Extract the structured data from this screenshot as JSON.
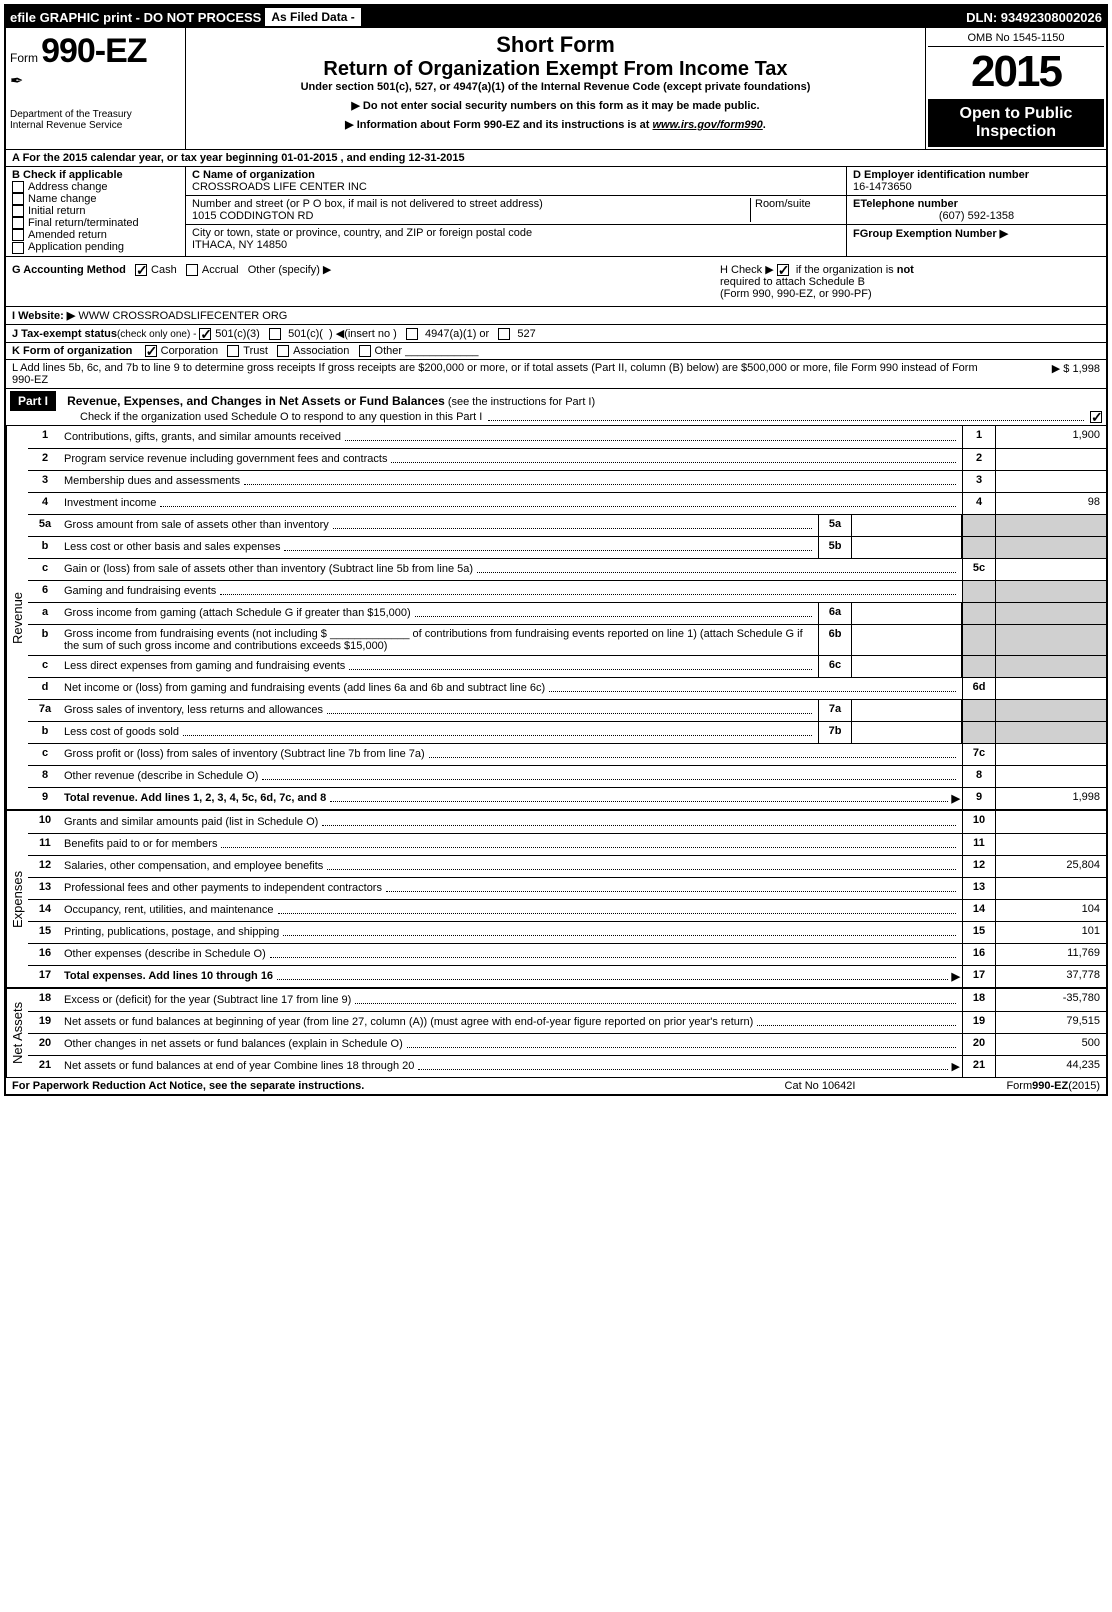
{
  "topbar": {
    "efile": "efile GRAPHIC print - DO NOT PROCESS",
    "asfiled": "As Filed Data -",
    "dln": "DLN: 93492308002026"
  },
  "header": {
    "form_prefix": "Form",
    "form_num": "990-EZ",
    "dept1": "Department of the Treasury",
    "dept2": "Internal Revenue Service",
    "short": "Short Form",
    "return": "Return of Organization Exempt From Income Tax",
    "under": "Under section 501(c), 527, or 4947(a)(1) of the Internal Revenue Code (except private foundations)",
    "note1": "▶ Do not enter social security numbers on this form as it may be made public.",
    "note2_pre": "▶ Information about Form 990-EZ and its instructions is at ",
    "note2_link": "www.irs.gov/form990",
    "omb": "OMB No 1545-1150",
    "year": "2015",
    "open1": "Open to Public",
    "open2": "Inspection"
  },
  "sectionA": "A  For the 2015 calendar year, or tax year beginning 01-01-2015              , and ending 12-31-2015",
  "boxB": {
    "title": "B  Check if applicable",
    "items": [
      "Address change",
      "Name change",
      "Initial return",
      "Final return/terminated",
      "Amended return",
      "Application pending"
    ]
  },
  "boxC": {
    "name_label": "C Name of organization",
    "name": "CROSSROADS LIFE CENTER INC",
    "street_label": "Number and street (or P  O  box, if mail is not delivered to street address)",
    "room_label": "Room/suite",
    "street": "1015 CODDINGTON RD",
    "city_label": "City or town, state or province, country, and ZIP or foreign postal code",
    "city": "ITHACA, NY  14850"
  },
  "boxD": {
    "ein_label": "D Employer identification number",
    "ein": "16-1473650",
    "tel_label": "ETelephone number",
    "tel": "(607) 592-1358",
    "grp_label": "FGroup Exemption Number  ▶"
  },
  "rowG": {
    "label": "G Accounting Method",
    "cash": "Cash",
    "accrual": "Accrual",
    "other": "Other (specify) ▶"
  },
  "rowH": {
    "text1": "H   Check ▶",
    "text2": "if the organization is ",
    "not": "not",
    "text3": "required to attach Schedule B",
    "text4": "(Form 990, 990-EZ, or 990-PF)"
  },
  "rowI": {
    "label": "I Website: ▶",
    "val": "WWW CROSSROADSLIFECENTER ORG"
  },
  "rowJ": "J Tax-exempt status(check only one) -  ☑501(c)(3)   ☐ 501(c)(  ) ◀(insert no )  ☐ 4947(a)(1) or  ☐ 527",
  "rowK": {
    "label": "K Form of organization",
    "corp": "Corporation",
    "trust": "Trust",
    "assoc": "Association",
    "other": "Other"
  },
  "rowL": {
    "text": "L Add lines 5b, 6c, and 7b to line 9 to determine gross receipts  If gross receipts are $200,000 or more, or if total assets (Part II, column (B) below) are $500,000 or more, file Form 990 instead of Form 990-EZ",
    "amt": "▶ $ 1,998"
  },
  "part1": {
    "label": "Part I",
    "title": "Revenue, Expenses, and Changes in Net Assets or Fund Balances",
    "sub": "(see the instructions for Part I)",
    "check": "Check if the organization used Schedule O to respond to any question in this Part I"
  },
  "side_labels": {
    "rev": "Revenue",
    "exp": "Expenses",
    "net": "Net Assets"
  },
  "lines": {
    "l1": {
      "n": "1",
      "d": "Contributions, gifts, grants, and similar amounts received",
      "en": "1",
      "ea": "1,900"
    },
    "l2": {
      "n": "2",
      "d": "Program service revenue including government fees and contracts",
      "en": "2",
      "ea": ""
    },
    "l3": {
      "n": "3",
      "d": "Membership dues and assessments",
      "en": "3",
      "ea": ""
    },
    "l4": {
      "n": "4",
      "d": "Investment income",
      "en": "4",
      "ea": "98"
    },
    "l5a": {
      "n": "5a",
      "d": "Gross amount from sale of assets other than inventory",
      "mn": "5a",
      "ma": ""
    },
    "l5b": {
      "n": "b",
      "d": "Less  cost or other basis and sales expenses",
      "mn": "5b",
      "ma": ""
    },
    "l5c": {
      "n": "c",
      "d": "Gain or (loss) from sale of assets other than inventory (Subtract line 5b from line 5a)",
      "en": "5c",
      "ea": ""
    },
    "l6": {
      "n": "6",
      "d": "Gaming and fundraising events"
    },
    "l6a": {
      "n": "a",
      "d": "Gross income from gaming (attach Schedule G if greater than $15,000)",
      "mn": "6a",
      "ma": ""
    },
    "l6b": {
      "n": "b",
      "d": "Gross income from fundraising events (not including $ _____________ of contributions from fundraising events reported on line 1) (attach Schedule G if the sum of such gross income and contributions exceeds $15,000)",
      "mn": "6b",
      "ma": ""
    },
    "l6c": {
      "n": "c",
      "d": "Less  direct expenses from gaming and fundraising events",
      "mn": "6c",
      "ma": ""
    },
    "l6d": {
      "n": "d",
      "d": "Net income or (loss) from gaming and fundraising events (add lines 6a and 6b and subtract line 6c)",
      "en": "6d",
      "ea": ""
    },
    "l7a": {
      "n": "7a",
      "d": "Gross sales of inventory, less returns and allowances",
      "mn": "7a",
      "ma": ""
    },
    "l7b": {
      "n": "b",
      "d": "Less  cost of goods sold",
      "mn": "7b",
      "ma": ""
    },
    "l7c": {
      "n": "c",
      "d": "Gross profit or (loss) from sales of inventory (Subtract line 7b from line 7a)",
      "en": "7c",
      "ea": ""
    },
    "l8": {
      "n": "8",
      "d": "Other revenue (describe in Schedule O)",
      "en": "8",
      "ea": ""
    },
    "l9": {
      "n": "9",
      "d": "Total revenue. Add lines 1, 2, 3, 4, 5c, 6d, 7c, and 8",
      "en": "9",
      "ea": "1,998",
      "bold": true,
      "arrow": true
    },
    "l10": {
      "n": "10",
      "d": "Grants and similar amounts paid (list in Schedule O)",
      "en": "10",
      "ea": ""
    },
    "l11": {
      "n": "11",
      "d": "Benefits paid to or for members",
      "en": "11",
      "ea": ""
    },
    "l12": {
      "n": "12",
      "d": "Salaries, other compensation, and employee benefits",
      "en": "12",
      "ea": "25,804"
    },
    "l13": {
      "n": "13",
      "d": "Professional fees and other payments to independent contractors",
      "en": "13",
      "ea": ""
    },
    "l14": {
      "n": "14",
      "d": "Occupancy, rent, utilities, and maintenance",
      "en": "14",
      "ea": "104"
    },
    "l15": {
      "n": "15",
      "d": "Printing, publications, postage, and shipping",
      "en": "15",
      "ea": "101"
    },
    "l16": {
      "n": "16",
      "d": "Other expenses (describe in Schedule O)",
      "en": "16",
      "ea": "11,769"
    },
    "l17": {
      "n": "17",
      "d": "Total expenses. Add lines 10 through 16",
      "en": "17",
      "ea": "37,778",
      "bold": true,
      "arrow": true
    },
    "l18": {
      "n": "18",
      "d": "Excess or (deficit) for the year (Subtract line 17 from line 9)",
      "en": "18",
      "ea": "-35,780"
    },
    "l19": {
      "n": "19",
      "d": "Net assets or fund balances at beginning of year (from line 27, column (A)) (must agree with end-of-year figure reported on prior year's return)",
      "en": "19",
      "ea": "79,515"
    },
    "l20": {
      "n": "20",
      "d": "Other changes in net assets or fund balances (explain in Schedule O)",
      "en": "20",
      "ea": "500"
    },
    "l21": {
      "n": "21",
      "d": "Net assets or fund balances at end of year  Combine lines 18 through 20",
      "en": "21",
      "ea": "44,235",
      "arrow": true
    }
  },
  "footer": {
    "left": "For Paperwork Reduction Act Notice, see the separate instructions.",
    "center": "Cat No 10642I",
    "right": "Form 990-EZ (2015)"
  }
}
